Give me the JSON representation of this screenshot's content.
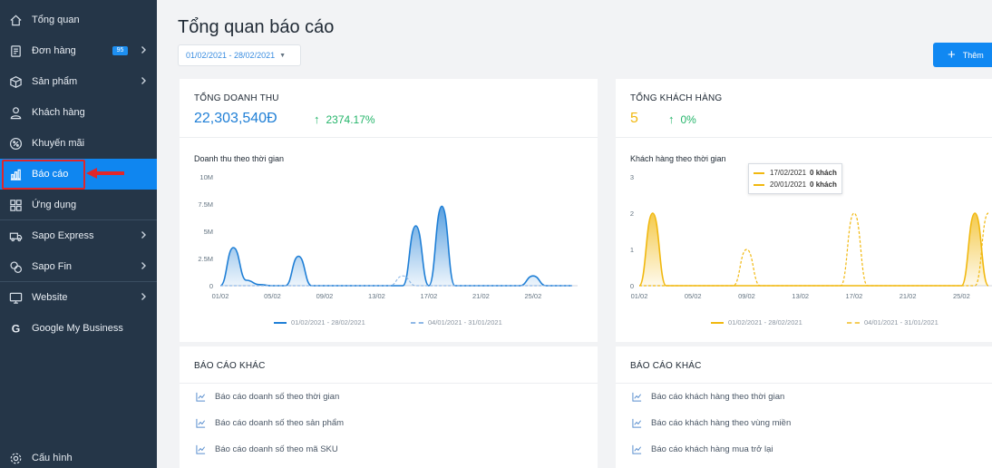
{
  "sidebar": {
    "items": [
      {
        "label": "Tổng quan",
        "icon": "home-icon"
      },
      {
        "label": "Đơn hàng",
        "icon": "order-icon",
        "badge": "95",
        "chevron": true
      },
      {
        "label": "Sản phẩm",
        "icon": "box-icon",
        "chevron": true
      },
      {
        "label": "Khách hàng",
        "icon": "user-icon"
      },
      {
        "label": "Khuyến mãi",
        "icon": "percent-icon"
      },
      {
        "label": "Báo cáo",
        "icon": "chart-icon",
        "active": true
      },
      {
        "label": "Ứng dụng",
        "icon": "apps-icon"
      },
      {
        "label": "Sapo Express",
        "icon": "truck-icon",
        "chevron": true
      },
      {
        "label": "Sapo Fin",
        "icon": "coins-icon",
        "chevron": true
      },
      {
        "label": "Website",
        "icon": "monitor-icon",
        "chevron": true
      },
      {
        "label": "Google My Business",
        "icon": "google-icon"
      }
    ],
    "settings_label": "Cấu hình"
  },
  "header": {
    "title": "Tổng quan báo cáo",
    "date_range": "01/02/2021 - 28/02/2021",
    "add_button": "Thêm"
  },
  "revenue": {
    "title": "TỔNG DOANH THU",
    "value": "22,303,540Đ",
    "growth": "2374.17%",
    "chart_title": "Doanh thu theo thời gian",
    "accent": "#1f7fd6"
  },
  "customers": {
    "title": "TỔNG KHÁCH HÀNG",
    "value": "5",
    "growth": "0%",
    "chart_title": "Khách hàng theo thời gian",
    "accent": "#f1b80f"
  },
  "tooltip": {
    "rows": [
      {
        "date": "17/02/2021",
        "value": "0 khách"
      },
      {
        "date": "20/01/2021",
        "value": "0 khách"
      }
    ]
  },
  "chart_data": [
    {
      "type": "area",
      "title": "Doanh thu theo thời gian",
      "x_ticks": [
        "01/02",
        "05/02",
        "09/02",
        "13/02",
        "17/02",
        "21/02",
        "25/02"
      ],
      "y_ticks": [
        "0",
        "2.5M",
        "5M",
        "7.5M",
        "10M"
      ],
      "ylim": [
        0,
        10
      ],
      "y_unit": "M",
      "series": [
        {
          "name": "01/02/2021 - 28/02/2021",
          "color": "#1f7fd6",
          "style": "solid",
          "points": [
            [
              0,
              0
            ],
            [
              1,
              3.5
            ],
            [
              2,
              0.5
            ],
            [
              3,
              0.1
            ],
            [
              4,
              0
            ],
            [
              5,
              0
            ],
            [
              6,
              2.7
            ],
            [
              7,
              0
            ],
            [
              8,
              0
            ],
            [
              9,
              0
            ],
            [
              10,
              0
            ],
            [
              11,
              0
            ],
            [
              12,
              0
            ],
            [
              13,
              0
            ],
            [
              14,
              0
            ],
            [
              15,
              5.5
            ],
            [
              16,
              0
            ],
            [
              17,
              7.3
            ],
            [
              18,
              0
            ],
            [
              19,
              0
            ],
            [
              20,
              0
            ],
            [
              21,
              0
            ],
            [
              22,
              0
            ],
            [
              23,
              0
            ],
            [
              24,
              0.9
            ],
            [
              25,
              0
            ],
            [
              26,
              0
            ],
            [
              27,
              0
            ]
          ]
        },
        {
          "name": "04/01/2021 - 31/01/2021",
          "color": "#8fb8e6",
          "style": "dash",
          "points": [
            [
              0,
              0
            ],
            [
              1,
              0
            ],
            [
              2,
              0
            ],
            [
              3,
              0
            ],
            [
              4,
              0
            ],
            [
              5,
              0
            ],
            [
              6,
              0
            ],
            [
              7,
              0
            ],
            [
              8,
              0
            ],
            [
              9,
              0
            ],
            [
              10,
              0
            ],
            [
              11,
              0
            ],
            [
              12,
              0
            ],
            [
              13,
              0
            ],
            [
              14,
              0.9
            ],
            [
              15,
              0
            ],
            [
              16,
              0
            ],
            [
              17,
              0
            ],
            [
              18,
              0
            ],
            [
              19,
              0
            ],
            [
              20,
              0
            ],
            [
              21,
              0
            ],
            [
              22,
              0
            ],
            [
              23,
              0
            ],
            [
              24,
              0
            ],
            [
              25,
              0
            ],
            [
              26,
              0
            ],
            [
              27,
              0
            ]
          ]
        }
      ]
    },
    {
      "type": "area",
      "title": "Khách hàng theo thời gian",
      "x_ticks": [
        "01/02",
        "05/02",
        "09/02",
        "13/02",
        "17/02",
        "21/02",
        "25/02"
      ],
      "y_ticks": [
        "0",
        "1",
        "2",
        "3"
      ],
      "ylim": [
        0,
        3
      ],
      "series": [
        {
          "name": "01/02/2021 - 28/02/2021",
          "color": "#f1b80f",
          "style": "solid",
          "points": [
            [
              0,
              0
            ],
            [
              1,
              2
            ],
            [
              2,
              0
            ],
            [
              3,
              0
            ],
            [
              4,
              0
            ],
            [
              5,
              0
            ],
            [
              6,
              0
            ],
            [
              7,
              0
            ],
            [
              8,
              0
            ],
            [
              9,
              0
            ],
            [
              10,
              0
            ],
            [
              11,
              0
            ],
            [
              12,
              0
            ],
            [
              13,
              0
            ],
            [
              14,
              0
            ],
            [
              15,
              0
            ],
            [
              16,
              0
            ],
            [
              17,
              0
            ],
            [
              18,
              0
            ],
            [
              19,
              0
            ],
            [
              20,
              0
            ],
            [
              21,
              0
            ],
            [
              22,
              0
            ],
            [
              23,
              0
            ],
            [
              24,
              0
            ],
            [
              25,
              2
            ],
            [
              26,
              0
            ]
          ]
        },
        {
          "name": "04/01/2021 - 31/01/2021",
          "color": "#f1b80f",
          "style": "dash",
          "points": [
            [
              0,
              0
            ],
            [
              1,
              0
            ],
            [
              2,
              0
            ],
            [
              3,
              0
            ],
            [
              4,
              0
            ],
            [
              5,
              0
            ],
            [
              6,
              0
            ],
            [
              7,
              0
            ],
            [
              8,
              1
            ],
            [
              9,
              0
            ],
            [
              10,
              0
            ],
            [
              11,
              0
            ],
            [
              12,
              0
            ],
            [
              13,
              0
            ],
            [
              14,
              0
            ],
            [
              15,
              0
            ],
            [
              16,
              2
            ],
            [
              17,
              0
            ],
            [
              18,
              0
            ],
            [
              19,
              0
            ],
            [
              20,
              0
            ],
            [
              21,
              0
            ],
            [
              22,
              0
            ],
            [
              23,
              0
            ],
            [
              24,
              0
            ],
            [
              25,
              0
            ],
            [
              26,
              2
            ]
          ]
        }
      ]
    }
  ],
  "other_reports": {
    "title": "BÁO CÁO KHÁC",
    "sales_links": [
      "Báo cáo doanh số theo thời gian",
      "Báo cáo doanh số theo sản phẩm",
      "Báo cáo doanh số theo mã SKU"
    ],
    "customer_links": [
      "Báo cáo khách hàng theo thời gian",
      "Báo cáo khách hàng theo vùng miền",
      "Báo cáo khách hàng mua trở lại"
    ]
  }
}
